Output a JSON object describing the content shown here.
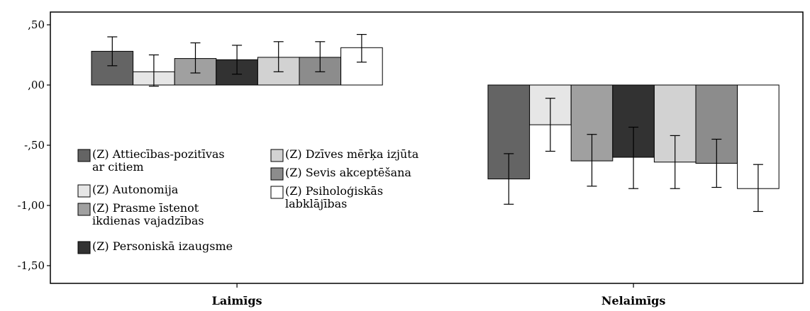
{
  "chart_data": {
    "type": "bar",
    "categories": [
      "Laimīgs",
      "Nelaimīgs"
    ],
    "ylim": [
      -1.6,
      0.6
    ],
    "yticks": [
      0.5,
      0.0,
      -0.5,
      -1.0,
      -1.5
    ],
    "ytick_labels": [
      ",50",
      ",00",
      "-,50",
      "-1,00",
      "-1,50"
    ],
    "grid": false,
    "error_bars": true,
    "legend_position": "inside-left",
    "series": [
      {
        "name": "(Z) Attiecības-pozitīvas ar citiem",
        "legend_lines": [
          "(Z) Attiecības-pozitīvas",
          "ar citiem"
        ],
        "color": "#646464",
        "values": [
          0.28,
          -0.78
        ],
        "err_low": [
          0.16,
          -0.99
        ],
        "err_high": [
          0.4,
          -0.57
        ]
      },
      {
        "name": "(Z) Autonomija",
        "legend_lines": [
          "(Z) Autonomija"
        ],
        "color": "#e6e6e6",
        "values": [
          0.11,
          -0.33
        ],
        "err_low": [
          -0.01,
          -0.55
        ],
        "err_high": [
          0.25,
          -0.11
        ]
      },
      {
        "name": "(Z) Prasme īstenot ikdienas vajadzības",
        "legend_lines": [
          "(Z) Prasme īstenot",
          "ikdienas vajadzības"
        ],
        "color": "#a0a0a0",
        "values": [
          0.22,
          -0.63
        ],
        "err_low": [
          0.1,
          -0.84
        ],
        "err_high": [
          0.35,
          -0.41
        ]
      },
      {
        "name": "(Z) Personiskā izaugsme",
        "legend_lines": [
          "(Z) Personiskā izaugsme"
        ],
        "color": "#323232",
        "values": [
          0.21,
          -0.6
        ],
        "err_low": [
          0.09,
          -0.86
        ],
        "err_high": [
          0.33,
          -0.35
        ]
      },
      {
        "name": "(Z) Dzīves mērķa izjūta",
        "legend_lines": [
          "(Z) Dzīves mērķa izjūta"
        ],
        "color": "#d2d2d2",
        "values": [
          0.23,
          -0.64
        ],
        "err_low": [
          0.11,
          -0.86
        ],
        "err_high": [
          0.36,
          -0.42
        ]
      },
      {
        "name": "(Z) Sevis akceptēšana",
        "legend_lines": [
          "(Z) Sevis akceptēšana"
        ],
        "color": "#8c8c8c",
        "values": [
          0.23,
          -0.65
        ],
        "err_low": [
          0.11,
          -0.85
        ],
        "err_high": [
          0.36,
          -0.45
        ]
      },
      {
        "name": "(Z) Psiholoģiskās labklājības",
        "legend_lines": [
          "(Z) Psiholoģiskās",
          "labklājības"
        ],
        "color": "#ffffff",
        "values": [
          0.31,
          -0.86
        ],
        "err_low": [
          0.19,
          -1.05
        ],
        "err_high": [
          0.42,
          -0.66
        ]
      }
    ]
  }
}
